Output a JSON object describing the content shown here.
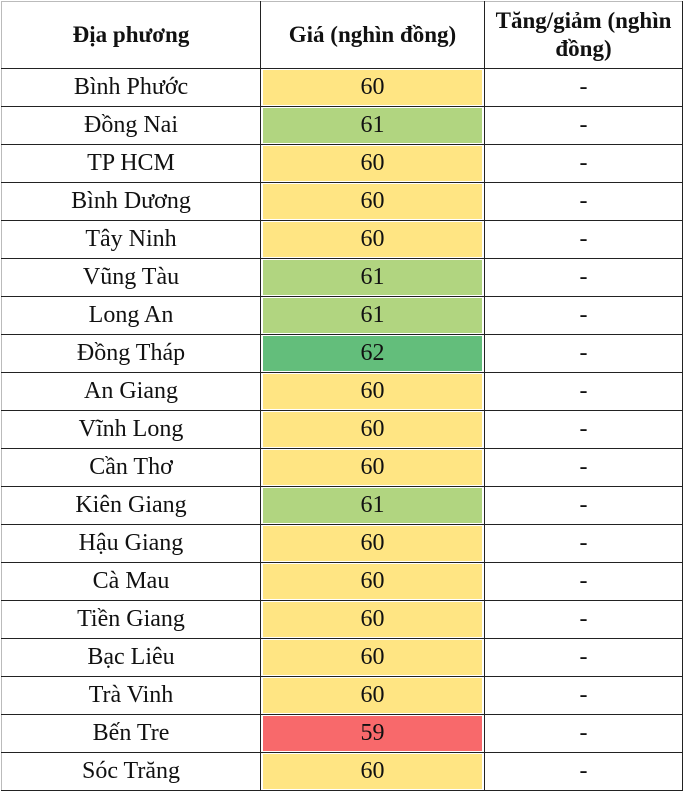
{
  "headers": {
    "location": "Địa phương",
    "price": "Giá (nghìn đồng)",
    "change": "Tăng/giảm (nghìn đồng)"
  },
  "colors": {
    "60": "#FFE583",
    "61": "#B1D580",
    "62": "#63BE7B",
    "59": "#F8696B"
  },
  "rows": [
    {
      "location": "Bình Phước",
      "price": "60",
      "change": "-"
    },
    {
      "location": "Đồng Nai",
      "price": "61",
      "change": "-"
    },
    {
      "location": "TP HCM",
      "price": "60",
      "change": "-"
    },
    {
      "location": "Bình Dương",
      "price": "60",
      "change": "-"
    },
    {
      "location": "Tây Ninh",
      "price": "60",
      "change": "-"
    },
    {
      "location": "Vũng Tàu",
      "price": "61",
      "change": "-"
    },
    {
      "location": "Long An",
      "price": "61",
      "change": "-"
    },
    {
      "location": "Đồng Tháp",
      "price": "62",
      "change": "-"
    },
    {
      "location": "An Giang",
      "price": "60",
      "change": "-"
    },
    {
      "location": "Vĩnh Long",
      "price": "60",
      "change": "-"
    },
    {
      "location": "Cần Thơ",
      "price": "60",
      "change": "-"
    },
    {
      "location": "Kiên Giang",
      "price": "61",
      "change": "-"
    },
    {
      "location": "Hậu Giang",
      "price": "60",
      "change": "-"
    },
    {
      "location": "Cà Mau",
      "price": "60",
      "change": "-"
    },
    {
      "location": "Tiền Giang",
      "price": "60",
      "change": "-"
    },
    {
      "location": "Bạc Liêu",
      "price": "60",
      "change": "-"
    },
    {
      "location": "Trà Vinh",
      "price": "60",
      "change": "-"
    },
    {
      "location": "Bến Tre",
      "price": "59",
      "change": "-"
    },
    {
      "location": "Sóc Trăng",
      "price": "60",
      "change": "-"
    }
  ]
}
